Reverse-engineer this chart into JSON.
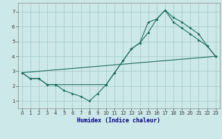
{
  "xlabel": "Humidex (Indice chaleur)",
  "bg_color": "#cce8e8",
  "grid_color": "#aacccc",
  "line_color": "#1a6b5a",
  "xlim": [
    -0.5,
    23.5
  ],
  "ylim": [
    0.5,
    7.6
  ],
  "xticks": [
    0,
    1,
    2,
    3,
    4,
    5,
    6,
    7,
    8,
    9,
    10,
    11,
    12,
    13,
    14,
    15,
    16,
    17,
    18,
    19,
    20,
    21,
    22,
    23
  ],
  "yticks": [
    1,
    2,
    3,
    4,
    5,
    6,
    7
  ],
  "line1_x": [
    0,
    1,
    2,
    3,
    4,
    5,
    6,
    7,
    8,
    9,
    10,
    11,
    12,
    13,
    14,
    15,
    16,
    17,
    18,
    19,
    20,
    21,
    22,
    23
  ],
  "line1_y": [
    2.9,
    2.5,
    2.5,
    2.1,
    2.1,
    1.7,
    1.5,
    1.3,
    1.0,
    1.5,
    2.1,
    2.9,
    3.7,
    4.5,
    4.9,
    5.6,
    6.5,
    7.1,
    6.3,
    5.9,
    5.5,
    5.1,
    4.7,
    4.0
  ],
  "line2_x": [
    0,
    1,
    2,
    3,
    4,
    10,
    11,
    12,
    13,
    14,
    15,
    16,
    17,
    18,
    19,
    20,
    21,
    22,
    23
  ],
  "line2_y": [
    2.9,
    2.5,
    2.5,
    2.1,
    2.1,
    2.1,
    2.9,
    3.7,
    4.5,
    4.9,
    6.3,
    6.5,
    7.1,
    6.6,
    6.3,
    5.9,
    5.5,
    4.7,
    4.0
  ],
  "line3_x": [
    0,
    23
  ],
  "line3_y": [
    2.9,
    4.0
  ]
}
